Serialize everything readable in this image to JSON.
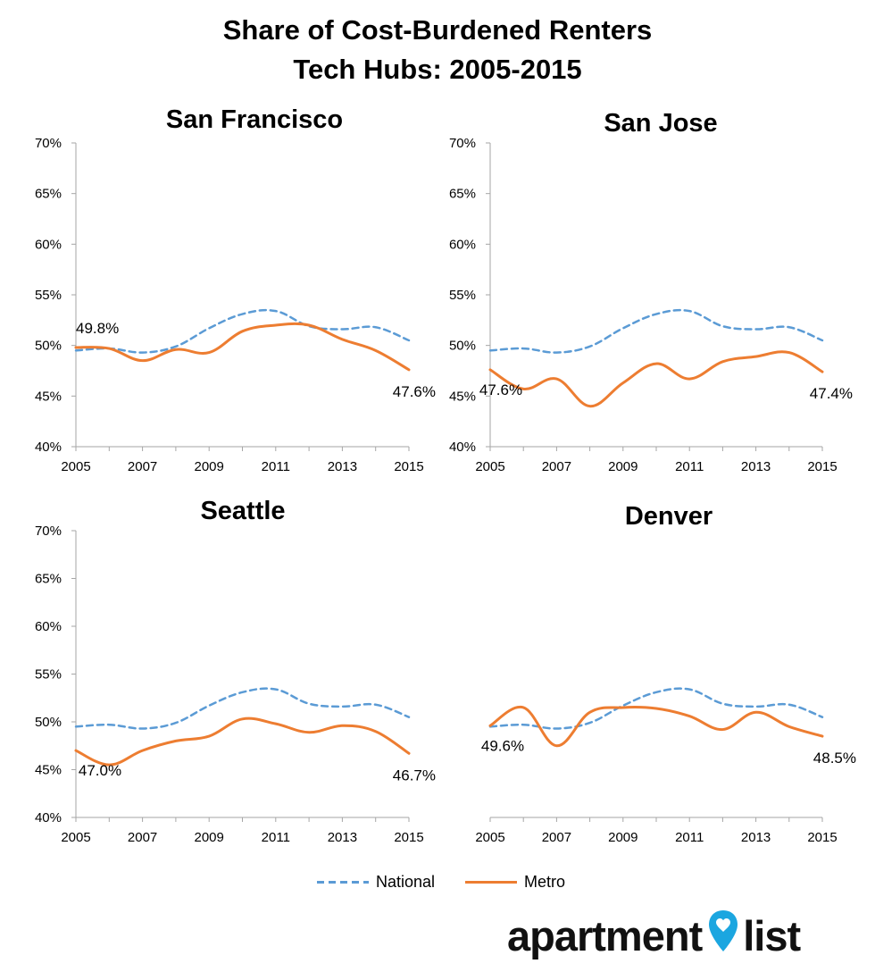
{
  "title_lines": [
    "Share of Cost-Burdened Renters",
    "Tech Hubs: 2005-2015"
  ],
  "chart_data": [
    {
      "type": "line",
      "title": "San Francisco",
      "x": [
        2005,
        2006,
        2007,
        2008,
        2009,
        2010,
        2011,
        2012,
        2013,
        2014,
        2015
      ],
      "x_ticks": [
        "2005",
        "2007",
        "2009",
        "2011",
        "2013",
        "2015"
      ],
      "y_ticks": [
        "40%",
        "45%",
        "50%",
        "55%",
        "60%",
        "65%",
        "70%"
      ],
      "ylim": [
        40,
        70
      ],
      "series": [
        {
          "name": "National",
          "values": [
            49.5,
            49.7,
            49.3,
            49.9,
            51.7,
            53.1,
            53.4,
            51.9,
            51.6,
            51.8,
            50.5
          ]
        },
        {
          "name": "Metro",
          "values": [
            49.8,
            49.7,
            48.5,
            49.6,
            49.3,
            51.4,
            52.0,
            52.0,
            50.6,
            49.5,
            47.6
          ]
        }
      ],
      "annotations": [
        {
          "text": "49.8%",
          "x": 2005,
          "y": 49.8
        },
        {
          "text": "47.6%",
          "x": 2015,
          "y": 47.6
        }
      ]
    },
    {
      "type": "line",
      "title": "San Jose",
      "x": [
        2005,
        2006,
        2007,
        2008,
        2009,
        2010,
        2011,
        2012,
        2013,
        2014,
        2015
      ],
      "x_ticks": [
        "2005",
        "2007",
        "2009",
        "2011",
        "2013",
        "2015"
      ],
      "y_ticks": [
        "40%",
        "45%",
        "50%",
        "55%",
        "60%",
        "65%",
        "70%"
      ],
      "ylim": [
        40,
        70
      ],
      "series": [
        {
          "name": "National",
          "values": [
            49.5,
            49.7,
            49.3,
            49.9,
            51.7,
            53.1,
            53.4,
            51.9,
            51.6,
            51.8,
            50.5
          ]
        },
        {
          "name": "Metro",
          "values": [
            47.6,
            45.7,
            46.7,
            44.0,
            46.3,
            48.2,
            46.7,
            48.4,
            48.9,
            49.3,
            47.4
          ]
        }
      ],
      "annotations": [
        {
          "text": "47.6%",
          "x": 2005,
          "y": 47.6
        },
        {
          "text": "47.4%",
          "x": 2015,
          "y": 47.4
        }
      ]
    },
    {
      "type": "line",
      "title": "Seattle",
      "x": [
        2005,
        2006,
        2007,
        2008,
        2009,
        2010,
        2011,
        2012,
        2013,
        2014,
        2015
      ],
      "x_ticks": [
        "2005",
        "2007",
        "2009",
        "2011",
        "2013",
        "2015"
      ],
      "y_ticks": [
        "40%",
        "45%",
        "50%",
        "55%",
        "60%",
        "65%",
        "70%"
      ],
      "ylim": [
        40,
        70
      ],
      "series": [
        {
          "name": "National",
          "values": [
            49.5,
            49.7,
            49.3,
            49.9,
            51.7,
            53.1,
            53.4,
            51.9,
            51.6,
            51.8,
            50.5
          ]
        },
        {
          "name": "Metro",
          "values": [
            47.0,
            45.5,
            47.0,
            48.0,
            48.5,
            50.3,
            49.8,
            48.9,
            49.6,
            49.0,
            46.7
          ]
        }
      ],
      "annotations": [
        {
          "text": "47.0%",
          "x": 2005,
          "y": 47.0
        },
        {
          "text": "46.7%",
          "x": 2015,
          "y": 46.7
        }
      ]
    },
    {
      "type": "line",
      "title": "Denver",
      "x": [
        2005,
        2006,
        2007,
        2008,
        2009,
        2010,
        2011,
        2012,
        2013,
        2014,
        2015
      ],
      "x_ticks": [
        "2005",
        "2007",
        "2009",
        "2011",
        "2013",
        "2015"
      ],
      "y_ticks": [],
      "ylim": [
        40,
        70
      ],
      "series": [
        {
          "name": "National",
          "values": [
            49.5,
            49.7,
            49.3,
            49.9,
            51.7,
            53.1,
            53.4,
            51.9,
            51.6,
            51.8,
            50.5
          ]
        },
        {
          "name": "Metro",
          "values": [
            49.6,
            51.5,
            47.5,
            51.0,
            51.5,
            51.4,
            50.6,
            49.2,
            51.0,
            49.5,
            48.5
          ]
        }
      ],
      "annotations": [
        {
          "text": "49.6%",
          "x": 2005,
          "y": 49.6
        },
        {
          "text": "48.5%",
          "x": 2015,
          "y": 48.5
        }
      ]
    }
  ],
  "legend": [
    {
      "name": "National",
      "style": "dashed",
      "color": "#5B9BD5"
    },
    {
      "name": "Metro",
      "style": "solid",
      "color": "#ED7D31"
    }
  ],
  "colors": {
    "national": "#5B9BD5",
    "metro": "#ED7D31",
    "axis": "#A6A6A6"
  },
  "logo": {
    "part1": "apartment",
    "part2": "list",
    "icon": "map-pin-heart-icon",
    "pin_color": "#1BA6E0"
  }
}
